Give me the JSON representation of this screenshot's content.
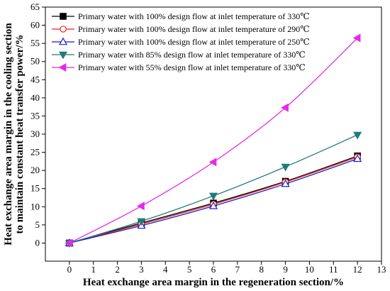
{
  "chart_data": {
    "type": "line",
    "title": "",
    "xlabel": "Heat exchange area margin in the regeneration section/%",
    "ylabel_lines": [
      "Heat exchange area margin in the cooling section",
      "to maintain constant heat transfer power/%"
    ],
    "x": [
      0,
      3,
      6,
      9,
      12
    ],
    "xlim": [
      -1,
      13
    ],
    "ylim": [
      -5,
      65
    ],
    "xticks": [
      0,
      1,
      2,
      3,
      4,
      5,
      6,
      7,
      8,
      9,
      10,
      11,
      12,
      13
    ],
    "yticks": [
      0,
      5,
      10,
      15,
      20,
      25,
      30,
      35,
      40,
      45,
      50,
      55,
      60,
      65
    ],
    "legend_position": "top-left",
    "series": [
      {
        "name": "Primary water with 100% design flow at inlet temperature of 330℃",
        "values": [
          0,
          5.5,
          11.0,
          17.0,
          24.0
        ],
        "color": "#000000",
        "marker": "square-filled"
      },
      {
        "name": "Primary water with 100% design flow at inlet temperature of 290℃",
        "values": [
          0,
          5.2,
          10.7,
          16.8,
          23.7
        ],
        "color": "#e8281e",
        "marker": "circle-open"
      },
      {
        "name": "Primary water with 100% design flow at inlet temperature of 250℃",
        "values": [
          0,
          4.8,
          10.2,
          16.3,
          23.2
        ],
        "color": "#1c1cd4",
        "marker": "triangle-up-open"
      },
      {
        "name": "Primary water with 85% design flow at inlet temperature of 330℃",
        "values": [
          0,
          6.0,
          13.0,
          21.0,
          29.8
        ],
        "color": "#217a78",
        "marker": "triangle-down-filled"
      },
      {
        "name": "Primary water with 55% design flow at inlet temperature of 330℃",
        "values": [
          0,
          10.2,
          22.3,
          37.3,
          56.5
        ],
        "color": "#e629e6",
        "marker": "triangle-left-filled"
      }
    ]
  }
}
